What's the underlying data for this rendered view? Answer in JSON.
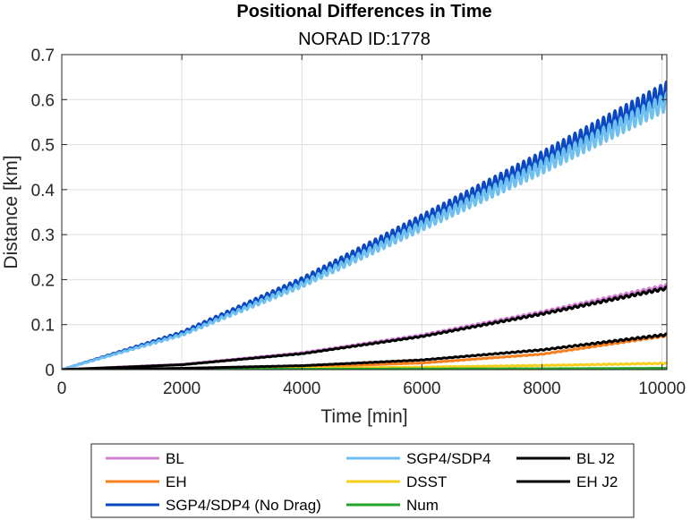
{
  "chart_data": {
    "type": "line",
    "title": "Positional Differences in Time",
    "subtitle": "NORAD ID:1778",
    "xlabel": "Time [min]",
    "ylabel": "Distance [km]",
    "xlim": [
      0,
      10080
    ],
    "ylim": [
      0,
      0.7
    ],
    "xticks": [
      0,
      2000,
      4000,
      6000,
      8000,
      10000
    ],
    "xtick_labels": [
      "0",
      "2000",
      "4000",
      "6000",
      "8000",
      "10000"
    ],
    "yticks": [
      0,
      0.1,
      0.2,
      0.3,
      0.4,
      0.5,
      0.6,
      0.7
    ],
    "ytick_labels": [
      "0",
      "0.1",
      "0.2",
      "0.3",
      "0.4",
      "0.5",
      "0.6",
      "0.7"
    ],
    "grid": true,
    "legend_position": "bottom outside",
    "series": [
      {
        "name": "BL",
        "color": "#d17fd1",
        "line_width": 3,
        "oscillation": 0.006,
        "x": [
          0,
          2000,
          4000,
          6000,
          8000,
          10080
        ],
        "y": [
          0,
          0.012,
          0.038,
          0.078,
          0.13,
          0.19
        ]
      },
      {
        "name": "EH",
        "color": "#f77f1e",
        "line_width": 3,
        "oscillation": 0.003,
        "x": [
          0,
          2000,
          4000,
          6000,
          8000,
          10080
        ],
        "y": [
          0,
          0.002,
          0.006,
          0.015,
          0.035,
          0.077
        ]
      },
      {
        "name": "SGP4/SDP4 (No Drag)",
        "color": "#0a47c2",
        "line_width": 3,
        "oscillation": 0.04,
        "x": [
          0,
          2000,
          4000,
          6000,
          8000,
          10080
        ],
        "y": [
          0,
          0.085,
          0.205,
          0.345,
          0.485,
          0.64
        ]
      },
      {
        "name": "SGP4/SDP4",
        "color": "#6fc0f0",
        "line_width": 3,
        "oscillation": 0.04,
        "x": [
          0,
          2000,
          4000,
          6000,
          8000,
          10080
        ],
        "y": [
          0,
          0.08,
          0.195,
          0.33,
          0.465,
          0.615
        ]
      },
      {
        "name": "DSST",
        "color": "#f5cf1a",
        "line_width": 3,
        "oscillation": 0.002,
        "x": [
          0,
          2000,
          4000,
          6000,
          8000,
          10080
        ],
        "y": [
          0,
          0.001,
          0.003,
          0.006,
          0.01,
          0.015
        ]
      },
      {
        "name": "Num",
        "color": "#22a52a",
        "line_width": 3,
        "oscillation": 0.0,
        "x": [
          0,
          2000,
          4000,
          6000,
          8000,
          10080
        ],
        "y": [
          0,
          0.0005,
          0.001,
          0.0015,
          0.002,
          0.003
        ]
      },
      {
        "name": "BL J2",
        "color": "#000000",
        "line_width": 3,
        "oscillation": 0.006,
        "x": [
          0,
          2000,
          4000,
          6000,
          8000,
          10080
        ],
        "y": [
          0,
          0.011,
          0.036,
          0.075,
          0.126,
          0.184
        ]
      },
      {
        "name": "EH J2",
        "color": "#000000",
        "line_width": 3,
        "oscillation": 0.004,
        "x": [
          0,
          2000,
          4000,
          6000,
          8000,
          10080
        ],
        "y": [
          0,
          0.003,
          0.009,
          0.022,
          0.045,
          0.08
        ]
      }
    ],
    "legend_columns": [
      [
        "BL",
        "EH",
        "SGP4/SDP4 (No Drag)"
      ],
      [
        "SGP4/SDP4",
        "DSST",
        "Num"
      ],
      [
        "BL J2",
        "EH J2"
      ]
    ]
  }
}
